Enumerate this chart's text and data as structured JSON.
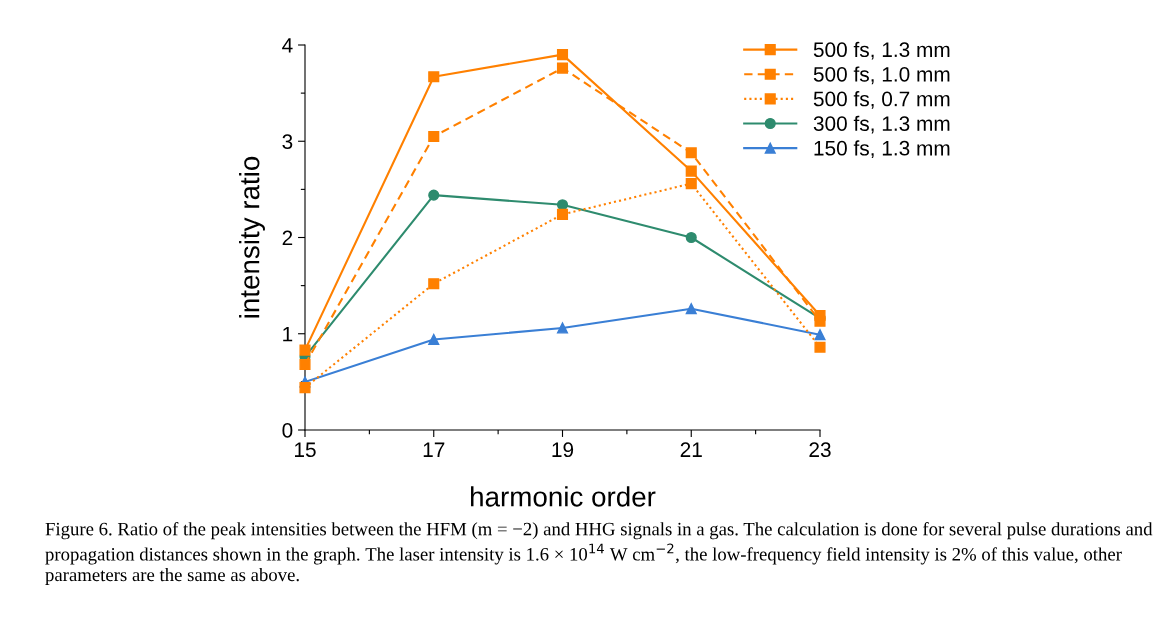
{
  "chart_data": {
    "type": "line",
    "xlabel": "harmonic order",
    "ylabel": "intensity ratio",
    "x": [
      15,
      17,
      19,
      21,
      23
    ],
    "series": [
      {
        "name": "500 fs, 1.3 mm",
        "color": "#ff8000",
        "marker": "square",
        "line_style": "solid",
        "values": [
          0.83,
          3.67,
          3.9,
          2.69,
          1.19
        ]
      },
      {
        "name": "500 fs, 1.0 mm",
        "color": "#ff8000",
        "marker": "square",
        "line_style": "dashed",
        "values": [
          0.68,
          3.05,
          3.76,
          2.88,
          1.13
        ]
      },
      {
        "name": "500 fs, 0.7 mm",
        "color": "#ff8000",
        "marker": "square",
        "line_style": "dotted",
        "values": [
          0.44,
          1.52,
          2.24,
          2.56,
          0.86
        ]
      },
      {
        "name": "300 fs, 1.3 mm",
        "color": "#2e8b6e",
        "marker": "circle",
        "line_style": "solid",
        "values": [
          0.76,
          2.44,
          2.34,
          2.0,
          1.16
        ]
      },
      {
        "name": "150 fs, 1.3 mm",
        "color": "#3a7fd5",
        "marker": "triangle",
        "line_style": "solid",
        "values": [
          0.5,
          0.94,
          1.06,
          1.26,
          0.99
        ]
      }
    ],
    "xlim": [
      15,
      23
    ],
    "ylim": [
      0,
      4
    ],
    "xticks": [
      15,
      {
        "value": 16,
        "label": null
      },
      17,
      {
        "value": 18,
        "label": null
      },
      19,
      {
        "value": 20,
        "label": null
      },
      21,
      {
        "value": 22,
        "label": null
      },
      23
    ],
    "yticks": [
      0,
      {
        "value": 0.5,
        "label": null
      },
      1,
      {
        "value": 1.5,
        "label": null
      },
      2,
      {
        "value": 2.5,
        "label": null
      },
      3,
      {
        "value": 3.5,
        "label": null
      },
      4
    ],
    "grid": false,
    "legend": "top right",
    "annotations": [
      "Figure 6. Ratio of the peak intensities between the HFM (m = −2) and HHG signals in a gas. The calculation is done for several pulse durations and propagation distances shown in the graph. The laser intensity is 1.6 × 10$^{14}$ W cm$^{−2}$, the low-frequency field intensity is 2% of this value, other parameters are the same as above."
    ]
  }
}
